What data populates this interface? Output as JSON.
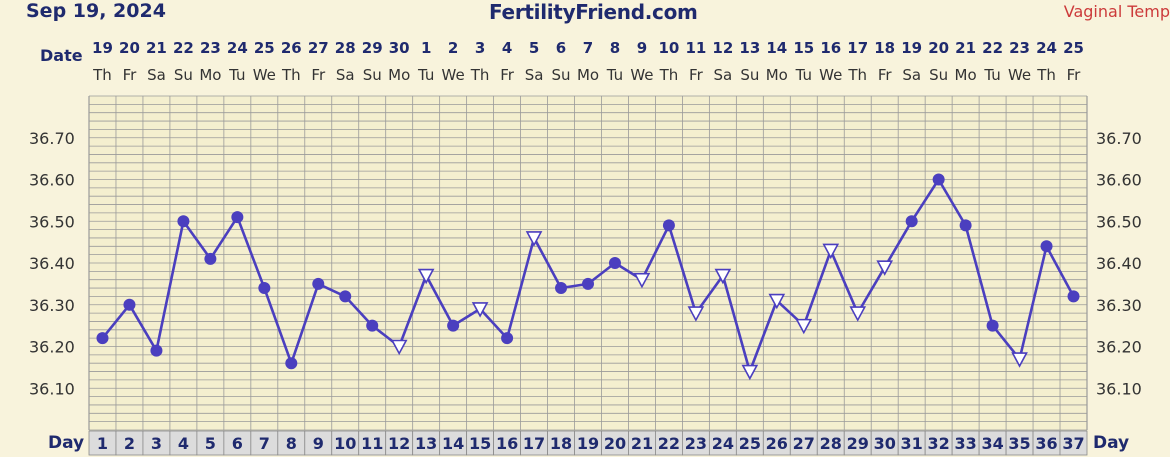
{
  "header": {
    "date": "Sep 19, 2024",
    "site": "FertilityFriend.com",
    "temp_type": "Vaginal Temp"
  },
  "labels": {
    "date_row": "Date",
    "day_row": "Day"
  },
  "colors": {
    "background": "#f8f3dc",
    "grid": "#9a9a9a",
    "line": "#4b3fbf",
    "text": "#1f2a6e",
    "day_box": "#dcdcdc",
    "accent": "#cc3a3a"
  },
  "chart_data": {
    "type": "line",
    "title": "",
    "xlabel": "Day",
    "ylabel": "",
    "ylim": [
      36.0,
      36.8
    ],
    "y_ticks": [
      "36.10",
      "36.20",
      "36.30",
      "36.40",
      "36.50",
      "36.60",
      "36.70"
    ],
    "days": [
      1,
      2,
      3,
      4,
      5,
      6,
      7,
      8,
      9,
      10,
      11,
      12,
      13,
      14,
      15,
      16,
      17,
      18,
      19,
      20,
      21,
      22,
      23,
      24,
      25,
      26,
      27,
      28,
      29,
      30,
      31,
      32,
      33,
      34,
      35,
      36,
      37
    ],
    "dates": [
      "19",
      "20",
      "21",
      "22",
      "23",
      "24",
      "25",
      "26",
      "27",
      "28",
      "29",
      "30",
      "1",
      "2",
      "3",
      "4",
      "5",
      "6",
      "7",
      "8",
      "9",
      "10",
      "11",
      "12",
      "13",
      "14",
      "15",
      "16",
      "17",
      "18",
      "19",
      "20",
      "21",
      "22",
      "23",
      "24",
      "25"
    ],
    "weekdays": [
      "Th",
      "Fr",
      "Sa",
      "Su",
      "Mo",
      "Tu",
      "We",
      "Th",
      "Fr",
      "Sa",
      "Su",
      "Mo",
      "Tu",
      "We",
      "Th",
      "Fr",
      "Sa",
      "Su",
      "Mo",
      "Tu",
      "We",
      "Th",
      "Fr",
      "Sa",
      "Su",
      "Mo",
      "Tu",
      "We",
      "Th",
      "Fr",
      "Sa",
      "Su",
      "Mo",
      "Tu",
      "We",
      "Th",
      "Fr"
    ],
    "series": [
      {
        "values": [
          36.22,
          36.3,
          36.19,
          36.5,
          36.41,
          36.51,
          36.34,
          36.16,
          36.35,
          36.32,
          36.25,
          36.2,
          36.37,
          36.25,
          36.29,
          36.22,
          36.46,
          36.34,
          36.35,
          36.4,
          36.36,
          36.49,
          36.28,
          36.37,
          36.14,
          36.31,
          36.25,
          36.43,
          36.28,
          36.39,
          36.5,
          36.6,
          36.49,
          36.25,
          36.17,
          36.44,
          36.32
        ],
        "markers": [
          "dot",
          "dot",
          "dot",
          "dot",
          "dot",
          "dot",
          "dot",
          "dot",
          "dot",
          "dot",
          "dot",
          "tri",
          "tri",
          "dot",
          "tri",
          "dot",
          "tri",
          "dot",
          "dot",
          "dot",
          "tri",
          "dot",
          "tri",
          "tri",
          "tri",
          "tri",
          "tri",
          "tri",
          "tri",
          "tri",
          "dot",
          "dot",
          "dot",
          "dot",
          "tri",
          "dot",
          "dot"
        ]
      }
    ]
  }
}
